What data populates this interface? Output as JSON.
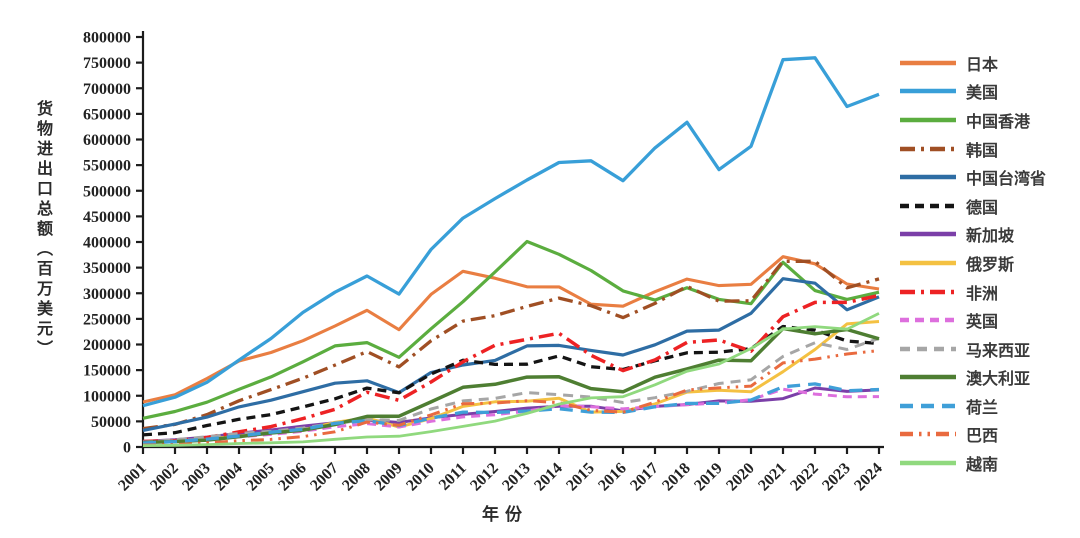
{
  "chart_data": {
    "type": "line",
    "title": "",
    "xlabel": "年份",
    "ylabel": "货物进出口总额（百万美元）",
    "ylim": [
      0,
      800000
    ],
    "ytick_step": 50000,
    "grid": false,
    "legend_position": "right",
    "x": [
      2001,
      2002,
      2003,
      2004,
      2005,
      2006,
      2007,
      2008,
      2009,
      2010,
      2011,
      2012,
      2013,
      2014,
      2015,
      2016,
      2017,
      2018,
      2019,
      2020,
      2021,
      2022,
      2023,
      2024
    ],
    "series": [
      {
        "id": "japan",
        "label": "日本",
        "color": "#E97E42",
        "dash": "",
        "width": 3.1,
        "values": [
          87750,
          101910,
          133570,
          167890,
          184410,
          207360,
          236020,
          266780,
          228850,
          297770,
          342890,
          329450,
          312550,
          312440,
          278660,
          274790,
          303000,
          327660,
          315000,
          317530,
          371400,
          357400,
          318000,
          308270
        ]
      },
      {
        "id": "usa",
        "label": "美国",
        "color": "#389FD8",
        "dash": "",
        "width": 3.3,
        "values": [
          80490,
          97180,
          126330,
          169630,
          211630,
          262680,
          302080,
          333740,
          298260,
          385340,
          446650,
          484680,
          521000,
          555120,
          558390,
          519610,
          583700,
          633520,
          541220,
          586720,
          755650,
          759430,
          664450,
          688280
        ]
      },
      {
        "id": "hongkong",
        "label": "中国香港",
        "color": "#5BAD3F",
        "dash": "",
        "width": 3.2,
        "values": [
          55970,
          69210,
          87410,
          112680,
          136700,
          166170,
          197250,
          203670,
          174940,
          230580,
          283520,
          341490,
          401000,
          376000,
          344330,
          304600,
          286600,
          310600,
          288000,
          279600,
          360300,
          305200,
          288000,
          302000
        ]
      },
      {
        "id": "korea",
        "label": "韩国",
        "color": "#A04F24",
        "dash": "15 6 3 6",
        "width": 3.3,
        "values": [
          35910,
          44070,
          63230,
          90070,
          111930,
          134310,
          159900,
          186110,
          156230,
          207170,
          245630,
          256330,
          274250,
          290490,
          275790,
          252580,
          280260,
          313430,
          284540,
          285260,
          362350,
          362280,
          310700,
          328080
        ]
      },
      {
        "id": "taiwan",
        "label": "中国台湾省",
        "color": "#2E6DA4",
        "dash": "",
        "width": 3.2,
        "values": [
          32340,
          44650,
          58370,
          78320,
          91230,
          107840,
          124480,
          129220,
          106220,
          145370,
          160030,
          168960,
          197280,
          198310,
          188560,
          179600,
          199390,
          226240,
          228080,
          260810,
          328340,
          319680,
          267800,
          292970
        ]
      },
      {
        "id": "germany",
        "label": "德国",
        "color": "#141414",
        "dash": "9 6",
        "width": 3.3,
        "values": [
          23530,
          27840,
          41880,
          54120,
          63250,
          78230,
          94060,
          114990,
          105730,
          142400,
          169150,
          161130,
          161560,
          177750,
          156780,
          151270,
          168150,
          183880,
          184920,
          192050,
          235180,
          228000,
          206800,
          201880
        ]
      },
      {
        "id": "singapore",
        "label": "新加坡",
        "color": "#7B3FA8",
        "dash": "",
        "width": 3.0,
        "values": [
          10930,
          14020,
          19350,
          26680,
          33150,
          40850,
          47160,
          52440,
          47860,
          57050,
          63650,
          69280,
          75910,
          79690,
          79640,
          70640,
          79200,
          82870,
          89970,
          89100,
          94480,
          115130,
          108400,
          111480
        ]
      },
      {
        "id": "russia",
        "label": "俄罗斯",
        "color": "#F4C142",
        "dash": "",
        "width": 3.0,
        "values": [
          10670,
          11930,
          15760,
          21230,
          29100,
          33390,
          48170,
          56830,
          38800,
          55450,
          79250,
          88160,
          89210,
          95280,
          68060,
          69520,
          84070,
          107060,
          110750,
          107760,
          146870,
          190270,
          240110,
          244810
        ]
      },
      {
        "id": "africa",
        "label": "非洲",
        "color": "#ED2224",
        "dash": "15 6 3 6",
        "width": 3.5,
        "values": [
          10800,
          12390,
          18550,
          29460,
          39740,
          55460,
          73570,
          106840,
          91070,
          126910,
          166330,
          198500,
          210200,
          221880,
          179000,
          149120,
          170000,
          204190,
          208700,
          187000,
          254300,
          282100,
          282140,
          295560
        ]
      },
      {
        "id": "uk",
        "label": "英国",
        "color": "#DD6FDD",
        "dash": "9 6",
        "width": 3.0,
        "values": [
          10310,
          11390,
          14400,
          19730,
          24510,
          30780,
          39430,
          45630,
          39120,
          50080,
          58660,
          63100,
          70000,
          80870,
          78540,
          74340,
          79030,
          82430,
          86270,
          92280,
          112820,
          103220,
          97920,
          98400
        ]
      },
      {
        "id": "malaysia",
        "label": "马来西亚",
        "color": "#A6A6A6",
        "dash": "10 7",
        "width": 3.0,
        "values": [
          9430,
          14270,
          20130,
          26260,
          30700,
          37110,
          46390,
          53470,
          51960,
          74210,
          90010,
          94810,
          106070,
          102020,
          97360,
          86760,
          96260,
          108670,
          123960,
          131160,
          176800,
          203590,
          190240,
          212040
        ]
      },
      {
        "id": "australia",
        "label": "澳大利亚",
        "color": "#4E7E32",
        "dash": "",
        "width": 3.5,
        "values": [
          9000,
          10440,
          13560,
          20390,
          27250,
          32880,
          43850,
          59660,
          60080,
          88090,
          116560,
          122340,
          136370,
          136900,
          113980,
          107800,
          136250,
          152270,
          169600,
          168260,
          231200,
          220920,
          229190,
          211040
        ]
      },
      {
        "id": "netherlands",
        "label": "荷兰",
        "color": "#3F9FD8",
        "dash": "13 8",
        "width": 3.3,
        "values": [
          7900,
          10520,
          15440,
          21490,
          28810,
          34490,
          46340,
          51260,
          41940,
          56150,
          68150,
          67560,
          70150,
          74630,
          68190,
          67460,
          78440,
          85170,
          85070,
          91670,
          117500,
          123090,
          109950,
          112210
        ]
      },
      {
        "id": "brazil",
        "label": "巴西",
        "color": "#E96A3F",
        "dash": "13 6 2.5 6 2.5 6",
        "width": 3.0,
        "values": [
          3700,
          4470,
          7990,
          12360,
          14820,
          20290,
          29710,
          48660,
          42400,
          62550,
          84200,
          85720,
          90280,
          86580,
          71540,
          67770,
          87540,
          111230,
          115300,
          118880,
          164100,
          171490,
          181530,
          188170
        ]
      },
      {
        "id": "vietnam",
        "label": "越南",
        "color": "#90D97E",
        "dash": "",
        "width": 2.8,
        "values": [
          2820,
          3260,
          4630,
          6740,
          8200,
          9950,
          15120,
          19460,
          21050,
          30090,
          40210,
          50440,
          65480,
          83640,
          95820,
          98230,
          121300,
          147860,
          162000,
          192280,
          230200,
          234920,
          229800,
          260650
        ]
      }
    ]
  }
}
